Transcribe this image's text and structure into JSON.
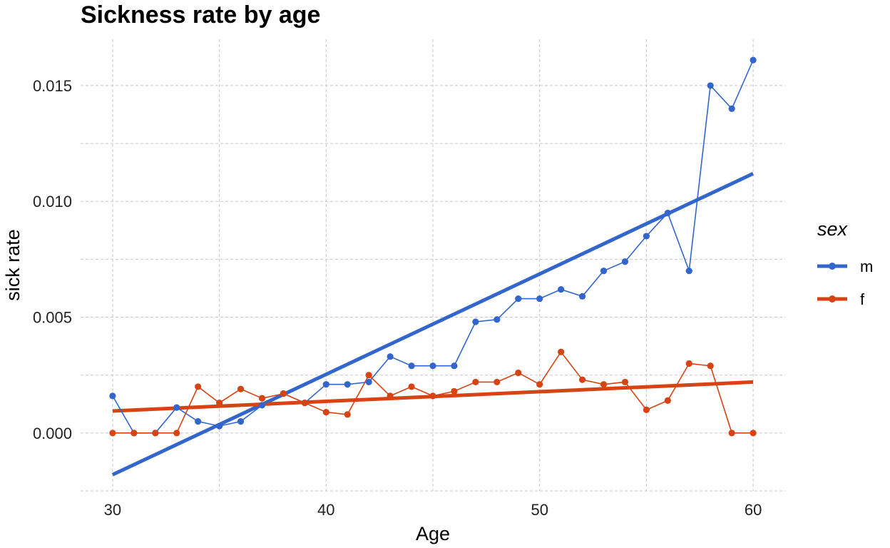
{
  "chart_data": {
    "type": "line",
    "title": "Sickness rate by age",
    "xlabel": "Age",
    "ylabel": "sick rate",
    "xlim": [
      28.5,
      61.5
    ],
    "ylim": [
      -0.0025,
      0.017
    ],
    "x_ticks": [
      30,
      40,
      50,
      60
    ],
    "x_tick_labels": [
      "30",
      "40",
      "50",
      "60"
    ],
    "y_ticks": [
      0.0,
      0.005,
      0.01,
      0.015
    ],
    "y_tick_labels": [
      "0.000",
      "0.005",
      "0.010",
      "0.015"
    ],
    "grid": true,
    "legend": {
      "title": "sex",
      "placement": "right"
    },
    "x": [
      30,
      31,
      32,
      33,
      34,
      35,
      36,
      37,
      38,
      39,
      40,
      41,
      42,
      43,
      44,
      45,
      46,
      47,
      48,
      49,
      50,
      51,
      52,
      53,
      54,
      55,
      56,
      57,
      58,
      59,
      60
    ],
    "series": [
      {
        "name": "m",
        "color": "#3366CC",
        "values": [
          0.0016,
          0.0,
          0.0,
          0.0011,
          0.0005,
          0.0003,
          0.0005,
          0.0012,
          0.0017,
          0.0013,
          0.0021,
          0.0021,
          0.0022,
          0.0033,
          0.0029,
          0.0029,
          0.0029,
          0.0048,
          0.0049,
          0.0058,
          0.0058,
          0.0062,
          0.0059,
          0.007,
          0.0074,
          0.0085,
          0.0095,
          0.007,
          0.015,
          0.014,
          0.0161
        ],
        "trend": {
          "x": [
            30,
            60
          ],
          "y": [
            -0.0018,
            0.0112
          ]
        }
      },
      {
        "name": "f",
        "color": "#D64414",
        "values": [
          0.0,
          0.0,
          0.0,
          0.0,
          0.002,
          0.0013,
          0.0019,
          0.0015,
          0.0017,
          0.0013,
          0.0009,
          0.0008,
          0.0025,
          0.0016,
          0.002,
          0.0016,
          0.0018,
          0.0022,
          0.0022,
          0.0026,
          0.0021,
          0.0035,
          0.0023,
          0.0021,
          0.0022,
          0.001,
          0.0014,
          0.003,
          0.0029,
          0.0,
          0.0
        ],
        "trend": {
          "x": [
            30,
            60
          ],
          "y": [
            0.00095,
            0.0022
          ]
        }
      }
    ]
  }
}
